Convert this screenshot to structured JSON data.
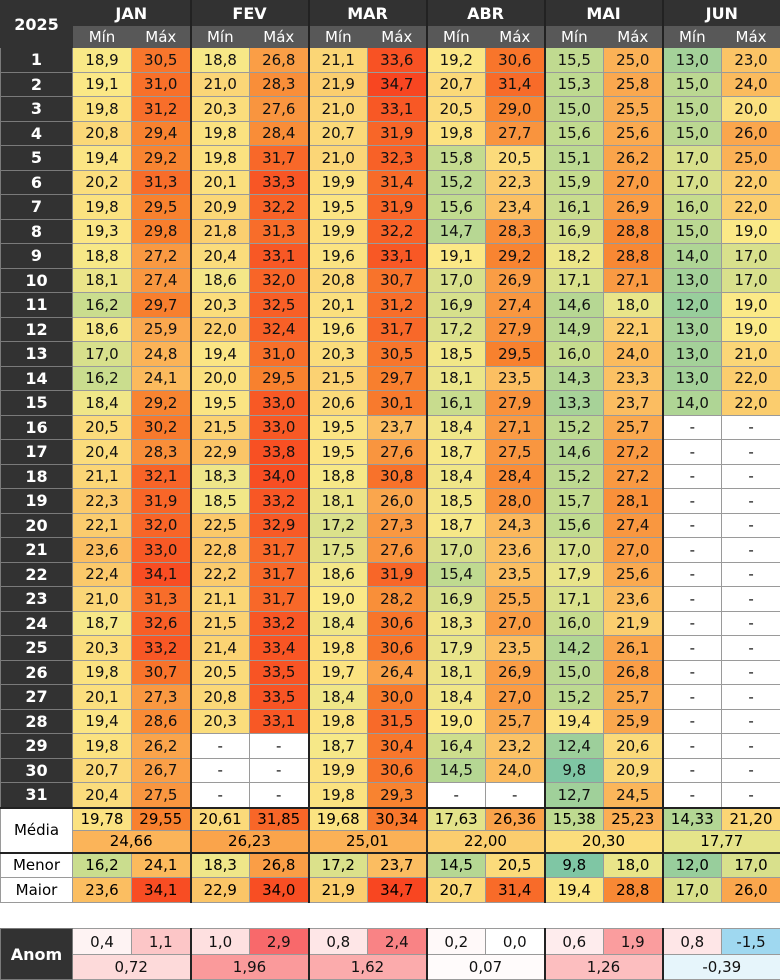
{
  "colors": {
    "scale_low": "#7fc6a4",
    "scale_mid": "#fbe987",
    "scale_high": "#f84621",
    "header_bg": "#323232",
    "subheader_bg": "#585858",
    "year_text": "#29b6f0",
    "anom_pos_strong": "#f8696b",
    "anom_neg": "#9fd8f0"
  },
  "table": {
    "year": "2025",
    "stat_labels": {
      "media": "Média",
      "menor": "Menor",
      "maior": "Maior"
    },
    "sub_min": "Mín",
    "sub_max": "Máx",
    "months": [
      {
        "name": "JAN",
        "min": [
          "18,9",
          "19,1",
          "19,8",
          "20,8",
          "19,4",
          "20,2",
          "19,8",
          "19,3",
          "18,8",
          "18,1",
          "16,2",
          "18,6",
          "17,0",
          "16,2",
          "18,4",
          "20,5",
          "20,4",
          "21,1",
          "22,3",
          "22,1",
          "23,6",
          "22,4",
          "21,0",
          "18,7",
          "20,3",
          "19,8",
          "20,1",
          "19,4",
          "19,8",
          "20,7",
          "20,4"
        ],
        "max": [
          "30,5",
          "31,0",
          "31,2",
          "29,4",
          "29,2",
          "31,3",
          "29,5",
          "29,8",
          "27,2",
          "27,4",
          "29,7",
          "25,9",
          "24,8",
          "24,1",
          "29,2",
          "30,2",
          "28,3",
          "32,1",
          "31,9",
          "32,0",
          "33,0",
          "34,1",
          "31,3",
          "32,6",
          "33,2",
          "30,7",
          "27,3",
          "28,6",
          "26,2",
          "26,7",
          "27,5"
        ],
        "media_min": "19,78",
        "media_max": "29,55",
        "media_all": "24,66",
        "menor_min": "16,2",
        "menor_max": "24,1",
        "maior_min": "23,6",
        "maior_max": "34,1",
        "anom_min": "0,4",
        "anom_max": "1,1",
        "anom_all": "0,72"
      },
      {
        "name": "FEV",
        "min": [
          "18,8",
          "21,0",
          "20,3",
          "19,8",
          "19,8",
          "20,1",
          "20,9",
          "21,8",
          "20,4",
          "18,6",
          "20,3",
          "22,0",
          "19,4",
          "20,0",
          "19,5",
          "21,5",
          "22,9",
          "18,3",
          "18,5",
          "22,5",
          "22,8",
          "22,2",
          "21,1",
          "21,5",
          "21,4",
          "20,5",
          "20,8",
          "20,3",
          "-",
          "-",
          "-"
        ],
        "max": [
          "26,8",
          "28,3",
          "27,6",
          "28,4",
          "31,7",
          "33,3",
          "32,2",
          "31,3",
          "33,1",
          "32,0",
          "32,5",
          "32,4",
          "31,0",
          "29,5",
          "33,0",
          "33,0",
          "33,8",
          "34,0",
          "33,2",
          "32,9",
          "31,7",
          "31,7",
          "31,7",
          "33,2",
          "33,4",
          "33,5",
          "33,5",
          "33,1",
          "-",
          "-",
          "-"
        ],
        "media_min": "20,61",
        "media_max": "31,85",
        "media_all": "26,23",
        "menor_min": "18,3",
        "menor_max": "26,8",
        "maior_min": "22,9",
        "maior_max": "34,0",
        "anom_min": "1,0",
        "anom_max": "2,9",
        "anom_all": "1,96"
      },
      {
        "name": "MAR",
        "min": [
          "21,1",
          "21,9",
          "21,0",
          "20,7",
          "21,0",
          "19,9",
          "19,5",
          "19,9",
          "19,6",
          "20,8",
          "20,1",
          "19,6",
          "20,3",
          "21,5",
          "20,6",
          "19,5",
          "19,5",
          "18,8",
          "18,1",
          "17,2",
          "17,5",
          "18,6",
          "19,0",
          "18,4",
          "19,8",
          "19,7",
          "18,4",
          "19,8",
          "18,7",
          "19,9",
          "19,8"
        ],
        "max": [
          "33,6",
          "34,7",
          "33,1",
          "31,9",
          "32,3",
          "31,4",
          "31,9",
          "32,2",
          "33,1",
          "30,7",
          "31,2",
          "31,7",
          "30,5",
          "29,7",
          "30,1",
          "23,7",
          "27,6",
          "30,8",
          "26,0",
          "27,3",
          "27,6",
          "31,9",
          "28,2",
          "30,6",
          "30,6",
          "26,4",
          "30,0",
          "31,5",
          "30,4",
          "30,6",
          "29,3"
        ],
        "media_min": "19,68",
        "media_max": "30,34",
        "media_all": "25,01",
        "menor_min": "17,2",
        "menor_max": "23,7",
        "maior_min": "21,9",
        "maior_max": "34,7",
        "anom_min": "0,8",
        "anom_max": "2,4",
        "anom_all": "1,62"
      },
      {
        "name": "ABR",
        "min": [
          "19,2",
          "20,7",
          "20,5",
          "19,8",
          "15,8",
          "15,2",
          "15,6",
          "14,7",
          "19,1",
          "17,0",
          "16,9",
          "17,2",
          "18,5",
          "18,1",
          "16,1",
          "18,4",
          "18,7",
          "18,4",
          "18,5",
          "18,7",
          "17,0",
          "15,4",
          "16,9",
          "18,3",
          "17,9",
          "18,1",
          "18,4",
          "19,0",
          "16,4",
          "14,5",
          "-"
        ],
        "max": [
          "30,6",
          "31,4",
          "29,0",
          "27,7",
          "20,5",
          "22,3",
          "23,4",
          "28,3",
          "29,2",
          "26,9",
          "27,4",
          "27,9",
          "29,5",
          "23,5",
          "27,9",
          "27,1",
          "27,5",
          "28,4",
          "28,0",
          "24,3",
          "23,6",
          "23,5",
          "25,5",
          "27,0",
          "23,5",
          "26,9",
          "27,0",
          "25,7",
          "23,2",
          "24,0",
          "-"
        ],
        "media_min": "17,63",
        "media_max": "26,36",
        "media_all": "22,00",
        "menor_min": "14,5",
        "menor_max": "20,5",
        "maior_min": "20,7",
        "maior_max": "31,4",
        "anom_min": "0,2",
        "anom_max": "0,0",
        "anom_all": "0,07"
      },
      {
        "name": "MAI",
        "min": [
          "15,5",
          "15,3",
          "15,0",
          "15,6",
          "15,1",
          "15,9",
          "16,1",
          "16,9",
          "18,2",
          "17,1",
          "14,6",
          "14,9",
          "16,0",
          "14,3",
          "13,3",
          "15,2",
          "14,6",
          "15,2",
          "15,7",
          "15,6",
          "17,0",
          "17,9",
          "17,1",
          "16,0",
          "14,2",
          "15,0",
          "15,2",
          "19,4",
          "12,4",
          "9,8",
          "12,7"
        ],
        "max": [
          "25,0",
          "25,8",
          "25,5",
          "25,6",
          "26,2",
          "27,0",
          "26,9",
          "28,8",
          "28,8",
          "27,1",
          "18,0",
          "22,1",
          "24,0",
          "23,3",
          "23,7",
          "25,7",
          "27,2",
          "27,2",
          "28,1",
          "27,4",
          "27,0",
          "25,6",
          "23,6",
          "21,9",
          "26,1",
          "26,8",
          "25,7",
          "25,9",
          "20,6",
          "20,9",
          "24,5"
        ],
        "media_min": "15,38",
        "media_max": "25,23",
        "media_all": "20,30",
        "menor_min": "9,8",
        "menor_max": "18,0",
        "maior_min": "19,4",
        "maior_max": "28,8",
        "anom_min": "0,6",
        "anom_max": "1,9",
        "anom_all": "1,26"
      },
      {
        "name": "JUN",
        "min": [
          "13,0",
          "15,0",
          "15,0",
          "15,0",
          "17,0",
          "17,0",
          "16,0",
          "15,0",
          "14,0",
          "13,0",
          "12,0",
          "13,0",
          "13,0",
          "13,0",
          "14,0",
          "-",
          "-",
          "-",
          "-",
          "-",
          "-",
          "-",
          "-",
          "-",
          "-",
          "-",
          "-",
          "-",
          "-",
          "-",
          "-"
        ],
        "max": [
          "23,0",
          "24,0",
          "20,0",
          "26,0",
          "25,0",
          "22,0",
          "22,0",
          "19,0",
          "17,0",
          "17,0",
          "19,0",
          "19,0",
          "21,0",
          "22,0",
          "22,0",
          "-",
          "-",
          "-",
          "-",
          "-",
          "-",
          "-",
          "-",
          "-",
          "-",
          "-",
          "-",
          "-",
          "-",
          "-",
          "-"
        ],
        "media_min": "14,33",
        "media_max": "21,20",
        "media_all": "17,77",
        "menor_min": "12,0",
        "menor_max": "17,0",
        "maior_min": "17,0",
        "maior_max": "26,0",
        "anom_min": "0,8",
        "anom_max": "-1,5",
        "anom_all": "-0,39"
      }
    ]
  },
  "anomaly": {
    "label": "Anom"
  }
}
